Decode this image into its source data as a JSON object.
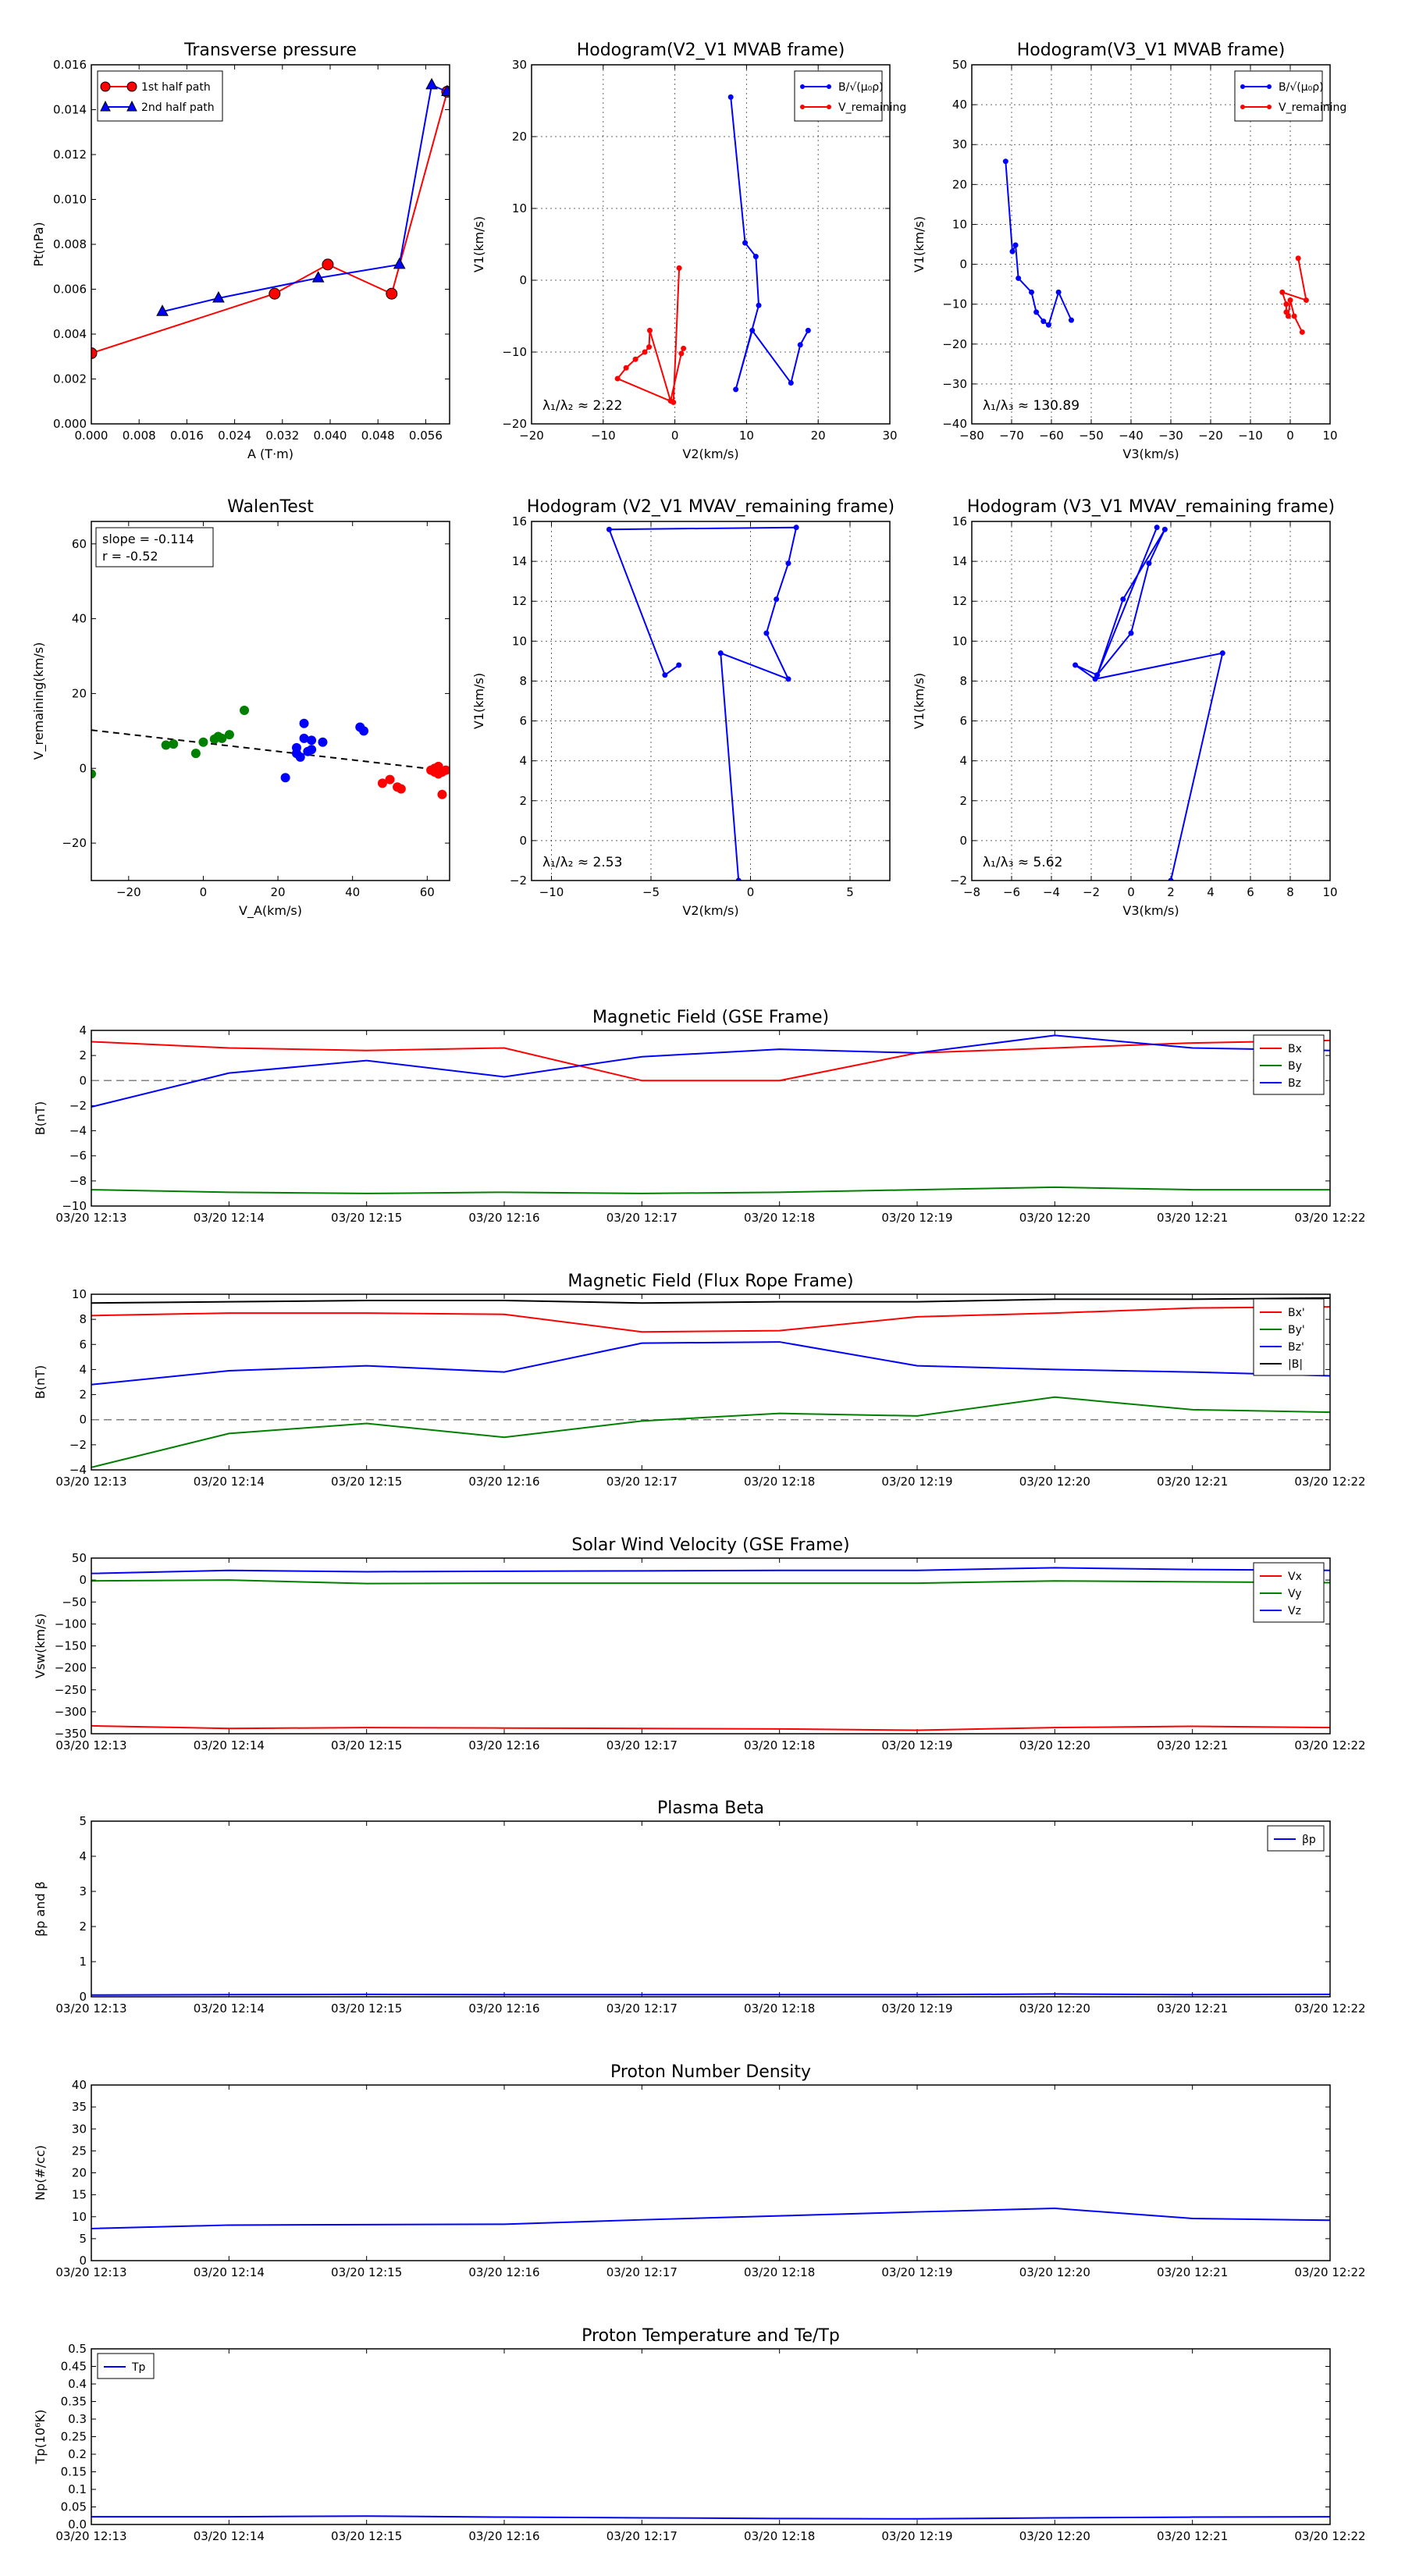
{
  "colors": {
    "red": "#ff0000",
    "blue": "#0000ff",
    "green": "#008000",
    "black": "#000000",
    "grey": "#808080"
  },
  "time_ticks": [
    "03/20 12:13",
    "03/20 12:14",
    "03/20 12:15",
    "03/20 12:16",
    "03/20 12:17",
    "03/20 12:18",
    "03/20 12:19",
    "03/20 12:20",
    "03/20 12:21",
    "03/20 12:22"
  ],
  "chart_data": [
    {
      "id": "pt",
      "type": "line",
      "title": "Transverse pressure",
      "xlabel": "A (T·m)",
      "ylabel": "Pt(nPa)",
      "xlim": [
        0.0,
        0.06
      ],
      "ylim": [
        0.0,
        0.016
      ],
      "xticks": [
        0.0,
        0.008,
        0.016,
        0.024,
        0.032,
        0.04,
        0.048,
        0.056
      ],
      "xtick_labels": [
        "0.000",
        "0.008",
        "0.016",
        "0.024",
        "0.032",
        "0.040",
        "0.048",
        "0.056"
      ],
      "yticks": [
        0,
        0.002,
        0.004,
        0.006,
        0.008,
        0.01,
        0.012,
        0.014,
        0.016
      ],
      "ytick_labels": [
        "0.000",
        "0.002",
        "0.004",
        "0.006",
        "0.008",
        "0.010",
        "0.012",
        "0.014",
        "0.016"
      ],
      "grid": false,
      "legend_loc": "upper-left",
      "series": [
        {
          "name": "1st half path",
          "color": "red",
          "marker": "circle",
          "x": [
            0.0,
            0.0307,
            0.0396,
            0.0503,
            0.0596
          ],
          "y": [
            0.00315,
            0.0058,
            0.0071,
            0.0058,
            0.0148
          ]
        },
        {
          "name": "2nd half path",
          "color": "blue",
          "marker": "triangle",
          "x": [
            0.0119,
            0.0213,
            0.038,
            0.0516,
            0.057,
            0.0596
          ],
          "y": [
            0.005,
            0.0056,
            0.0065,
            0.0071,
            0.0151,
            0.0148
          ]
        }
      ]
    },
    {
      "id": "hodo1",
      "type": "line",
      "title": "Hodogram(V2_V1 MVAB frame)",
      "xlabel": "V2(km/s)",
      "ylabel": "V1(km/s)",
      "xlim": [
        -20,
        30
      ],
      "ylim": [
        -20,
        30
      ],
      "xticks": [
        -20,
        -10,
        0,
        10,
        20,
        30
      ],
      "xtick_labels": [
        "−20",
        "−10",
        "0",
        "10",
        "20",
        "30"
      ],
      "yticks": [
        -20,
        -10,
        0,
        10,
        20,
        30
      ],
      "ytick_labels": [
        "−20",
        "−10",
        "0",
        "10",
        "20",
        "30"
      ],
      "grid": true,
      "legend_loc": "upper-right",
      "annotation": "λ₁/λ₂ ≈ 2.22",
      "series": [
        {
          "name": "B/√(μ₀ρ)",
          "color": "blue",
          "marker": "dot",
          "x": [
            7.8,
            9.8,
            11.3,
            11.7,
            8.5,
            10.8,
            16.2,
            17.5,
            18.6
          ],
          "y": [
            25.5,
            5.2,
            3.3,
            -3.5,
            -15.2,
            -7.0,
            -14.3,
            -9.0,
            -7.0
          ]
        },
        {
          "name": "V_remaining",
          "color": "red",
          "marker": "dot",
          "x": [
            0.6,
            -0.2,
            -8.0,
            -6.8,
            -5.5,
            -4.2,
            -3.6,
            -3.5,
            -0.6,
            0.9,
            1.2
          ],
          "y": [
            1.7,
            -17.0,
            -13.7,
            -12.2,
            -11.0,
            -10.0,
            -9.3,
            -7.0,
            -16.8,
            -10.2,
            -9.5
          ]
        }
      ]
    },
    {
      "id": "hodo2",
      "type": "line",
      "title": "Hodogram(V3_V1 MVAB frame)",
      "xlabel": "V3(km/s)",
      "ylabel": "V1(km/s)",
      "xlim": [
        -80,
        10
      ],
      "ylim": [
        -40,
        50
      ],
      "xticks": [
        -80,
        -70,
        -60,
        -50,
        -40,
        -30,
        -20,
        -10,
        0,
        10
      ],
      "xtick_labels": [
        "−80",
        "−70",
        "−60",
        "−50",
        "−40",
        "−30",
        "−20",
        "−10",
        "0",
        "10"
      ],
      "yticks": [
        -40,
        -30,
        -20,
        -10,
        0,
        10,
        20,
        30,
        40,
        50
      ],
      "ytick_labels": [
        "−40",
        "−30",
        "−20",
        "−10",
        "0",
        "10",
        "20",
        "30",
        "40",
        "50"
      ],
      "grid": true,
      "legend_loc": "upper-right",
      "annotation": "λ₁/λ₃ ≈ 130.89",
      "series": [
        {
          "name": "B/√(μ₀ρ)",
          "color": "blue",
          "marker": "dot",
          "x": [
            -71.5,
            -69.8,
            -69.0,
            -68.3,
            -65.0,
            -63.8,
            -62.0,
            -60.7,
            -58.2,
            -55.0
          ],
          "y": [
            25.8,
            3.2,
            4.8,
            -3.5,
            -7.0,
            -12.0,
            -14.3,
            -15.2,
            -7.0,
            -14.0
          ]
        },
        {
          "name": "V_remaining",
          "color": "red",
          "marker": "dot",
          "x": [
            2.0,
            4.0,
            -2.0,
            -1.0,
            -1.0,
            -0.5,
            0.0,
            1.0,
            3.0
          ],
          "y": [
            1.5,
            -9.0,
            -7.0,
            -10.0,
            -12.0,
            -13.0,
            -9.0,
            -13.0,
            -17.0
          ]
        }
      ]
    },
    {
      "id": "walen",
      "type": "scatter",
      "title": "WalenTest",
      "xlabel": "V_A(km/s)",
      "ylabel": "V_remaining(km/s)",
      "xlim": [
        -30,
        66
      ],
      "ylim": [
        -30,
        66
      ],
      "xticks": [
        -20,
        0,
        20,
        40,
        60
      ],
      "xtick_labels": [
        "−20",
        "0",
        "20",
        "40",
        "60"
      ],
      "yticks": [
        -20,
        0,
        20,
        40,
        60
      ],
      "ytick_labels": [
        "−20",
        "0",
        "20",
        "40",
        "60"
      ],
      "grid": false,
      "slope_label": "slope = -0.114",
      "r_label": "r = -0.52",
      "fit": {
        "slope": -0.114,
        "intercept": 6.8
      },
      "series": [
        {
          "name": "green",
          "color": "green",
          "x": [
            -30,
            -10,
            -8,
            -2,
            0,
            3,
            4,
            5,
            7,
            11
          ],
          "y": [
            -1.5,
            6.2,
            6.5,
            4.0,
            7.0,
            7.8,
            8.5,
            8.0,
            9.0,
            15.5
          ]
        },
        {
          "name": "blue",
          "color": "blue",
          "x": [
            22,
            25,
            25,
            26,
            27,
            27,
            28,
            29,
            29,
            32,
            42,
            43
          ],
          "y": [
            -2.5,
            5.5,
            4.0,
            3.0,
            12.0,
            8.0,
            4.5,
            5.0,
            7.5,
            7.0,
            11.0,
            10.0
          ]
        },
        {
          "name": "red",
          "color": "red",
          "x": [
            48,
            50,
            52,
            53,
            61,
            62,
            62,
            63,
            63,
            64,
            64,
            65
          ],
          "y": [
            -4.0,
            -3.0,
            -5.0,
            -5.5,
            -0.5,
            -1.0,
            0.0,
            -1.5,
            0.5,
            -7.0,
            -1.0,
            -0.5
          ]
        }
      ]
    },
    {
      "id": "hodo3",
      "type": "line",
      "title": "Hodogram (V2_V1 MVAV_remaining frame)",
      "xlabel": "V2(km/s)",
      "ylabel": "V1(km/s)",
      "xlim": [
        -11,
        7
      ],
      "ylim": [
        -2,
        16
      ],
      "xticks": [
        -10,
        -5,
        0,
        5
      ],
      "xtick_labels": [
        "−10",
        "−5",
        "0",
        "5"
      ],
      "yticks": [
        -2,
        0,
        2,
        4,
        6,
        8,
        10,
        12,
        14,
        16
      ],
      "ytick_labels": [
        "−2",
        "0",
        "2",
        "4",
        "6",
        "8",
        "10",
        "12",
        "14",
        "16"
      ],
      "grid": true,
      "annotation": "λ₁/λ₂ ≈ 2.53",
      "series": [
        {
          "name": "path",
          "color": "blue",
          "marker": "dot",
          "x": [
            -0.6,
            -1.5,
            1.9,
            0.8,
            1.3,
            1.9,
            2.3,
            -7.1,
            -4.3,
            -3.6
          ],
          "y": [
            -2.0,
            9.4,
            8.1,
            10.4,
            12.1,
            13.9,
            15.7,
            15.6,
            8.3,
            8.8
          ]
        }
      ]
    },
    {
      "id": "hodo4",
      "type": "line",
      "title": "Hodogram (V3_V1 MVAV_remaining frame)",
      "xlabel": "V3(km/s)",
      "ylabel": "V1(km/s)",
      "xlim": [
        -8,
        10
      ],
      "ylim": [
        -2,
        16
      ],
      "xticks": [
        -8,
        -6,
        -4,
        -2,
        0,
        2,
        4,
        6,
        8,
        10
      ],
      "xtick_labels": [
        "−8",
        "−6",
        "−4",
        "−2",
        "0",
        "2",
        "4",
        "6",
        "8",
        "10"
      ],
      "yticks": [
        -2,
        0,
        2,
        4,
        6,
        8,
        10,
        12,
        14,
        16
      ],
      "ytick_labels": [
        "−2",
        "0",
        "2",
        "4",
        "6",
        "8",
        "10",
        "12",
        "14",
        "16"
      ],
      "grid": true,
      "annotation": "λ₁/λ₃ ≈ 5.62",
      "series": [
        {
          "name": "path",
          "color": "blue",
          "marker": "dot",
          "x": [
            2.0,
            4.6,
            -1.8,
            -2.8,
            -1.7,
            0.0,
            0.9,
            1.7,
            -0.4,
            -1.7,
            1.3
          ],
          "y": [
            -2.0,
            9.4,
            8.1,
            8.8,
            8.3,
            10.4,
            13.9,
            15.6,
            12.1,
            8.3,
            15.7
          ]
        }
      ]
    },
    {
      "id": "bgse",
      "type": "line",
      "title": "Magnetic Field (GSE Frame)",
      "ylabel": "B(nT)",
      "ylim": [
        -10,
        4
      ],
      "yticks": [
        -10,
        -8,
        -6,
        -4,
        -2,
        0,
        2,
        4
      ],
      "ytick_labels": [
        "−10",
        "−8",
        "−6",
        "−4",
        "−2",
        "0",
        "2",
        "4"
      ],
      "zero_line": true,
      "legend_loc": "upper-right",
      "series": [
        {
          "name": "Bx",
          "color": "red",
          "values": [
            3.1,
            2.6,
            2.4,
            2.6,
            0.0,
            0.0,
            2.2,
            2.6,
            3.0,
            3.2
          ]
        },
        {
          "name": "By",
          "color": "green",
          "values": [
            -8.7,
            -8.9,
            -9.0,
            -8.9,
            -9.0,
            -8.9,
            -8.7,
            -8.5,
            -8.7,
            -8.7
          ]
        },
        {
          "name": "Bz",
          "color": "blue",
          "values": [
            -2.1,
            0.6,
            1.6,
            0.3,
            1.9,
            2.5,
            2.2,
            3.6,
            2.6,
            2.4
          ]
        }
      ]
    },
    {
      "id": "bfr",
      "type": "line",
      "title": "Magnetic Field (Flux Rope Frame)",
      "ylabel": "B(nT)",
      "ylim": [
        -4,
        10
      ],
      "yticks": [
        -4,
        -2,
        0,
        2,
        4,
        6,
        8,
        10
      ],
      "ytick_labels": [
        "−4",
        "−2",
        "0",
        "2",
        "4",
        "6",
        "8",
        "10"
      ],
      "zero_line": true,
      "legend_loc": "upper-right",
      "series": [
        {
          "name": "Bx'",
          "color": "red",
          "values": [
            8.3,
            8.5,
            8.5,
            8.4,
            7.0,
            7.1,
            8.2,
            8.5,
            8.9,
            9.0
          ]
        },
        {
          "name": "By'",
          "color": "green",
          "values": [
            -3.8,
            -1.1,
            -0.3,
            -1.4,
            -0.1,
            0.5,
            0.3,
            1.8,
            0.8,
            0.6
          ]
        },
        {
          "name": "Bz'",
          "color": "blue",
          "values": [
            2.8,
            3.9,
            4.3,
            3.8,
            6.1,
            6.2,
            4.3,
            4.0,
            3.8,
            3.5
          ]
        },
        {
          "name": "|B|",
          "color": "black",
          "values": [
            9.3,
            9.4,
            9.5,
            9.5,
            9.3,
            9.4,
            9.4,
            9.6,
            9.6,
            9.7
          ]
        }
      ]
    },
    {
      "id": "vsw",
      "type": "line",
      "title": "Solar Wind Velocity (GSE Frame)",
      "ylabel": "Vsw(km/s)",
      "ylim": [
        -350,
        50
      ],
      "yticks": [
        -350,
        -300,
        -250,
        -200,
        -150,
        -100,
        -50,
        0,
        50
      ],
      "ytick_labels": [
        "−350",
        "−300",
        "−250",
        "−200",
        "−150",
        "−100",
        "−50",
        "0",
        "50"
      ],
      "zero_line": false,
      "legend_loc": "upper-right",
      "series": [
        {
          "name": "Vx",
          "color": "red",
          "values": [
            -332,
            -338,
            -336,
            -337,
            -338,
            -339,
            -342,
            -336,
            -333,
            -336
          ]
        },
        {
          "name": "Vy",
          "color": "green",
          "values": [
            -2,
            0,
            -8,
            -7,
            -7,
            -7,
            -7,
            -2,
            -4,
            -6
          ]
        },
        {
          "name": "Vz",
          "color": "blue",
          "values": [
            15,
            22,
            19,
            20,
            21,
            22,
            22,
            28,
            24,
            22
          ]
        }
      ]
    },
    {
      "id": "beta",
      "type": "line",
      "title": "Plasma Beta",
      "ylabel": "βp and β",
      "ylim": [
        0,
        5
      ],
      "yticks": [
        0,
        1,
        2,
        3,
        4,
        5
      ],
      "ytick_labels": [
        "0",
        "1",
        "2",
        "3",
        "4",
        "5"
      ],
      "zero_line": false,
      "legend_loc": "upper-right",
      "series": [
        {
          "name": "βp",
          "color": "blue",
          "values": [
            0.05,
            0.06,
            0.07,
            0.06,
            0.06,
            0.06,
            0.06,
            0.08,
            0.06,
            0.07
          ]
        }
      ]
    },
    {
      "id": "np",
      "type": "line",
      "title": "Proton Number Density",
      "ylabel": "Np(#/cc)",
      "ylim": [
        0,
        40
      ],
      "yticks": [
        0,
        5,
        10,
        15,
        20,
        25,
        30,
        35,
        40
      ],
      "ytick_labels": [
        "0",
        "5",
        "10",
        "15",
        "20",
        "25",
        "30",
        "35",
        "40"
      ],
      "zero_line": false,
      "legend_loc": "none",
      "series": [
        {
          "name": "Np",
          "color": "blue",
          "values": [
            7.3,
            8.1,
            8.2,
            8.3,
            9.3,
            10.2,
            11.1,
            11.9,
            9.6,
            9.2
          ]
        }
      ]
    },
    {
      "id": "tp",
      "type": "line",
      "title": "Proton Temperature and Te/Tp",
      "ylabel": "Tp(10⁶K)",
      "ylim": [
        0,
        0.5
      ],
      "yticks": [
        0,
        0.05,
        0.1,
        0.15,
        0.2,
        0.25,
        0.3,
        0.35,
        0.4,
        0.45,
        0.5
      ],
      "ytick_labels": [
        "0.0",
        "0.05",
        "0.1",
        "0.15",
        "0.2",
        "0.25",
        "0.3",
        "0.35",
        "0.4",
        "0.45",
        "0.5"
      ],
      "zero_line": false,
      "legend_loc": "upper-left",
      "series": [
        {
          "name": "Tp",
          "color": "blue",
          "values": [
            0.022,
            0.022,
            0.024,
            0.021,
            0.019,
            0.017,
            0.016,
            0.019,
            0.021,
            0.022
          ]
        }
      ]
    }
  ]
}
